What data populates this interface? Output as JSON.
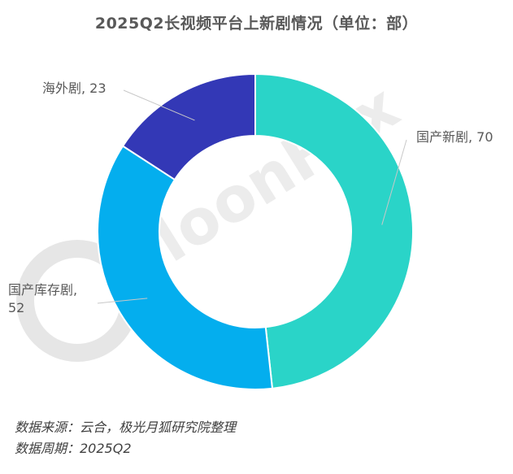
{
  "chart_data": {
    "type": "pie",
    "donut": true,
    "title": "2025Q2长视频平台上新剧情况（单位：部）",
    "categories": [
      "国产新剧",
      "国产库存剧",
      "海外剧"
    ],
    "values": [
      70,
      52,
      23
    ],
    "colors": [
      "#2ad4c8",
      "#04aeee",
      "#3338b6"
    ],
    "labels": [
      "国产新剧, 70",
      "国产库存剧, 52",
      "海外剧, 23"
    ],
    "label_lines": [
      [
        "国产新剧, 70"
      ],
      [
        "国产库存剧,",
        "52"
      ],
      [
        "海外剧, 23"
      ]
    ],
    "legend": "none"
  },
  "watermark": {
    "text": "MoonFox"
  },
  "footer": {
    "source": "数据来源：云合，极光月狐研究院整理",
    "period": "数据周期：2025Q2"
  }
}
